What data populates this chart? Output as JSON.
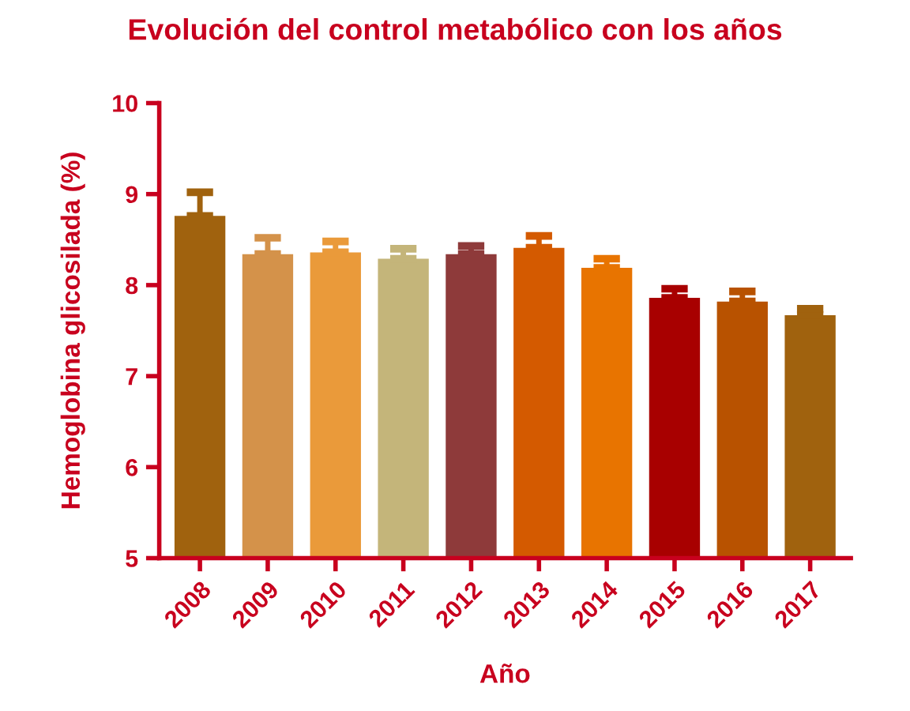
{
  "chart_data": {
    "type": "bar",
    "title": "Evolución del control metabólico con los años",
    "xlabel": "Año",
    "ylabel": "Hemoglobina glicosilada (%)",
    "categories": [
      "2008",
      "2009",
      "2010",
      "2011",
      "2012",
      "2013",
      "2014",
      "2015",
      "2016",
      "2017"
    ],
    "values": [
      8.76,
      8.34,
      8.36,
      8.29,
      8.34,
      8.41,
      8.19,
      7.86,
      7.82,
      7.67
    ],
    "errors": [
      [
        8.76,
        9.02
      ],
      [
        8.34,
        8.52
      ],
      [
        8.36,
        8.48
      ],
      [
        8.29,
        8.4
      ],
      [
        8.34,
        8.43
      ],
      [
        8.41,
        8.54
      ],
      [
        8.19,
        8.29
      ],
      [
        7.86,
        7.96
      ],
      [
        7.82,
        7.93
      ],
      [
        7.67,
        7.74
      ]
    ],
    "colors": [
      "#a0620e",
      "#d4924a",
      "#ea9a3a",
      "#c4b57a",
      "#8e3a3a",
      "#d45a00",
      "#e87400",
      "#a80000",
      "#b85200",
      "#a0620e"
    ],
    "ylim": [
      5,
      10
    ],
    "yticks": [
      5,
      6,
      7,
      8,
      9,
      10
    ],
    "grid": false,
    "legend": false
  }
}
